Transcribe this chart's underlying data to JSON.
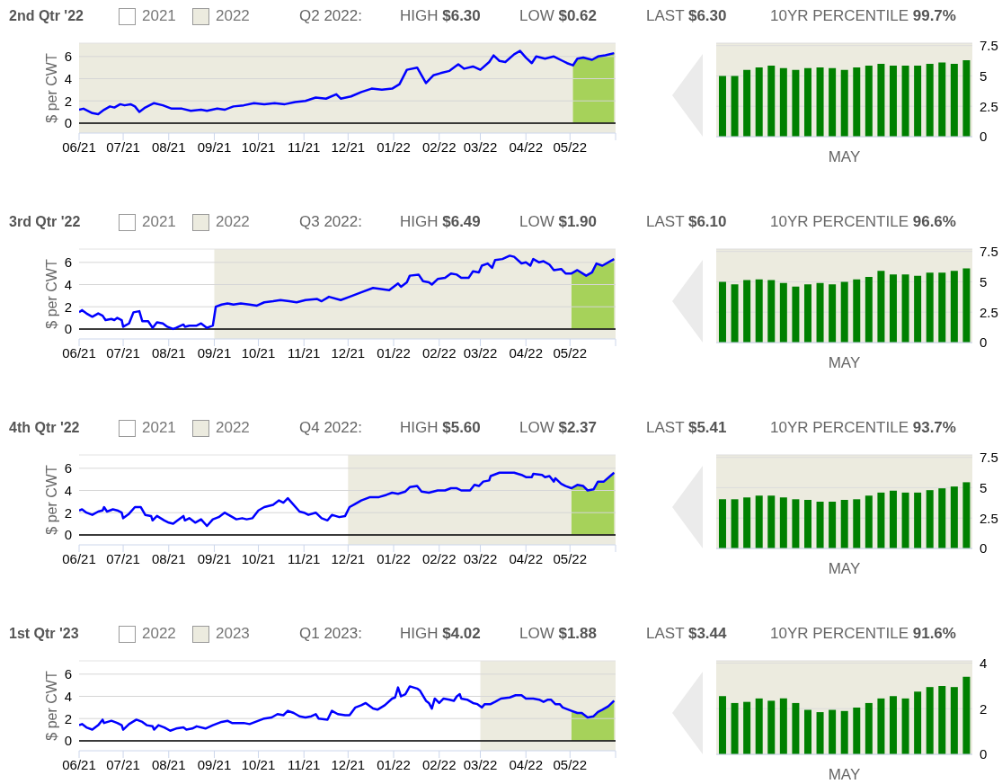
{
  "chart_data": [
    {
      "type": "line",
      "title": "2nd Qtr '22",
      "annotations": [
        "2021",
        "Q2 2022:",
        "HIGH $6.30",
        "LOW $0.62",
        "LAST $6.30",
        "10YR PERCENTILE 99.7%"
      ],
      "ylabel": "$ per CWT",
      "xlim": [
        "2021-06-01",
        "2022-06-01"
      ],
      "xticks": [
        {
          "value": "2021-06-01",
          "label": "06/21"
        },
        {
          "value": "2021-07-01",
          "label": "07/21"
        },
        {
          "value": "2021-08-01",
          "label": "08/21"
        },
        {
          "value": "2021-09-01",
          "label": "09/21"
        },
        {
          "value": "2021-10-01",
          "label": "10/21"
        },
        {
          "value": "2021-11-01",
          "label": "11/21"
        },
        {
          "value": "2021-12-01",
          "label": "12/21"
        },
        {
          "value": "2022-01-01",
          "label": "01/22"
        },
        {
          "value": "2022-02-01",
          "label": "02/22"
        },
        {
          "value": "2022-03-01",
          "label": "03/22"
        },
        {
          "value": "2022-04-01",
          "label": "04/22"
        },
        {
          "value": "2022-05-01",
          "label": "05/22"
        },
        {
          "value": "2022-06-01",
          "label": null
        }
      ],
      "ylim": [
        -0.9,
        7.2
      ],
      "yticks": [
        0,
        2,
        4,
        6
      ],
      "grid": "y",
      "bands": [
        {
          "axis": "x",
          "from": "2021-06-01",
          "to": "2022-06-01",
          "label": "2022",
          "color": "#ecebdf"
        }
      ],
      "ref_lines": [
        {
          "axis": "y",
          "value": 0,
          "color": "#000000"
        }
      ],
      "series": [
        {
          "type": "area",
          "color": "#a6d25a",
          "x": [
            "2022-05-03",
            "2022-05-06",
            "2022-05-10",
            "2022-05-16",
            "2022-05-20",
            "2022-05-25",
            "2022-05-31"
          ],
          "values": [
            5.2,
            5.8,
            5.9,
            5.7,
            6.0,
            6.1,
            6.3
          ]
        },
        {
          "color": "#0000ff",
          "x": [
            "2021-06-01",
            "2021-06-04",
            "2021-06-10",
            "2021-06-14",
            "2021-06-18",
            "2021-06-22",
            "2021-06-25",
            "2021-06-29",
            "2021-07-02",
            "2021-07-06",
            "2021-07-09",
            "2021-07-12",
            "2021-07-16",
            "2021-07-22",
            "2021-07-28",
            "2021-08-03",
            "2021-08-10",
            "2021-08-16",
            "2021-08-23",
            "2021-08-27",
            "2021-09-03",
            "2021-09-08",
            "2021-09-14",
            "2021-09-21",
            "2021-09-28",
            "2021-10-05",
            "2021-10-12",
            "2021-10-19",
            "2021-10-26",
            "2021-11-02",
            "2021-11-09",
            "2021-11-16",
            "2021-11-23",
            "2021-11-26",
            "2021-12-03",
            "2021-12-10",
            "2021-12-17",
            "2021-12-24",
            "2021-12-31",
            "2022-01-05",
            "2022-01-10",
            "2022-01-17",
            "2022-01-23",
            "2022-01-28",
            "2022-02-02",
            "2022-02-08",
            "2022-02-14",
            "2022-02-18",
            "2022-02-24",
            "2022-03-01",
            "2022-03-07",
            "2022-03-10",
            "2022-03-14",
            "2022-03-18",
            "2022-03-24",
            "2022-03-28",
            "2022-04-01",
            "2022-04-05",
            "2022-04-08",
            "2022-04-14",
            "2022-04-20",
            "2022-04-26",
            "2022-04-29",
            "2022-05-03",
            "2022-05-06",
            "2022-05-10",
            "2022-05-16",
            "2022-05-20",
            "2022-05-25",
            "2022-05-31"
          ],
          "values": [
            1.2,
            1.3,
            0.9,
            0.8,
            1.2,
            1.5,
            1.4,
            1.7,
            1.6,
            1.7,
            1.5,
            1.0,
            1.4,
            1.8,
            1.6,
            1.3,
            1.3,
            1.1,
            1.2,
            1.1,
            1.3,
            1.2,
            1.5,
            1.6,
            1.8,
            1.7,
            1.8,
            1.7,
            1.9,
            2.0,
            2.3,
            2.2,
            2.6,
            2.2,
            2.4,
            2.8,
            3.1,
            3.0,
            3.1,
            3.5,
            4.8,
            5.0,
            3.6,
            4.3,
            4.5,
            4.7,
            5.3,
            4.9,
            5.1,
            4.8,
            5.5,
            6.1,
            5.6,
            5.5,
            6.2,
            6.5,
            5.9,
            5.4,
            6.0,
            5.8,
            6.0,
            5.6,
            5.4,
            5.2,
            5.8,
            5.9,
            5.7,
            6.0,
            6.1,
            6.3
          ]
        }
      ]
    },
    {
      "type": "bar",
      "categories": [
        null,
        null,
        null,
        null,
        null,
        null,
        null,
        null,
        null,
        null,
        null,
        null,
        null,
        null,
        null,
        null,
        null,
        null,
        null,
        null,
        null
      ],
      "xlabel": "MAY",
      "values": [
        5.0,
        5.0,
        5.5,
        5.7,
        5.85,
        5.65,
        5.5,
        5.65,
        5.7,
        5.65,
        5.5,
        5.7,
        5.85,
        6.0,
        5.85,
        5.85,
        5.85,
        6.0,
        6.1,
        6.0,
        6.3
      ],
      "color": "#008000",
      "ylim": [
        0,
        7.7
      ],
      "yticks": [
        0,
        2.5,
        5,
        7.5
      ],
      "grid": "y"
    },
    {
      "type": "line",
      "title": "3rd Qtr '22",
      "annotations": [
        "2021",
        "Q3 2022:",
        "HIGH $6.49",
        "LOW $1.90",
        "LAST $6.10",
        "10YR PERCENTILE 96.6%"
      ],
      "ylabel": "$ per CWT",
      "xlim": [
        "2021-06-01",
        "2022-06-01"
      ],
      "xticks": [
        {
          "value": "2021-06-01",
          "label": "06/21"
        },
        {
          "value": "2021-07-01",
          "label": "07/21"
        },
        {
          "value": "2021-08-01",
          "label": "08/21"
        },
        {
          "value": "2021-09-01",
          "label": "09/21"
        },
        {
          "value": "2021-10-01",
          "label": "10/21"
        },
        {
          "value": "2021-11-01",
          "label": "11/21"
        },
        {
          "value": "2021-12-01",
          "label": "12/21"
        },
        {
          "value": "2022-01-01",
          "label": "01/22"
        },
        {
          "value": "2022-02-01",
          "label": "02/22"
        },
        {
          "value": "2022-03-01",
          "label": "03/22"
        },
        {
          "value": "2022-04-01",
          "label": "04/22"
        },
        {
          "value": "2022-05-01",
          "label": "05/22"
        },
        {
          "value": "2022-06-01",
          "label": null
        }
      ],
      "ylim": [
        -0.9,
        7.2
      ],
      "yticks": [
        0,
        2,
        4,
        6
      ],
      "grid": "y",
      "bands": [
        {
          "axis": "x",
          "from": "2021-09-01",
          "to": "2022-06-01",
          "label": "2022",
          "color": "#ecebdf"
        }
      ],
      "ref_lines": [
        {
          "axis": "y",
          "value": 0,
          "color": "#000000"
        }
      ],
      "series": [
        {
          "type": "area",
          "color": "#a6d25a",
          "x": [
            "2022-05-02",
            "2022-05-06",
            "2022-05-12",
            "2022-05-16",
            "2022-05-19",
            "2022-05-23",
            "2022-05-31"
          ],
          "values": [
            5.0,
            5.3,
            4.8,
            5.1,
            5.9,
            5.7,
            6.3
          ]
        },
        {
          "color": "#0000ff",
          "x": [
            "2021-06-01",
            "2021-06-03",
            "2021-06-06",
            "2021-06-10",
            "2021-06-14",
            "2021-06-17",
            "2021-06-19",
            "2021-06-23",
            "2021-06-25",
            "2021-06-27",
            "2021-06-30",
            "2021-07-01",
            "2021-07-05",
            "2021-07-08",
            "2021-07-12",
            "2021-07-14",
            "2021-07-18",
            "2021-07-21",
            "2021-07-24",
            "2021-07-28",
            "2021-07-31",
            "2021-08-04",
            "2021-08-06",
            "2021-08-11",
            "2021-08-12",
            "2021-08-15",
            "2021-08-20",
            "2021-08-23",
            "2021-08-27",
            "2021-08-31",
            "2021-09-02",
            "2021-09-06",
            "2021-09-10",
            "2021-09-14",
            "2021-09-19",
            "2021-09-25",
            "2021-09-30",
            "2021-10-05",
            "2021-10-11",
            "2021-10-16",
            "2021-10-22",
            "2021-10-27",
            "2021-11-02",
            "2021-11-10",
            "2021-11-13",
            "2021-11-18",
            "2021-11-26",
            "2021-12-02",
            "2021-12-10",
            "2021-12-18",
            "2021-12-29",
            "2022-01-04",
            "2022-01-06",
            "2022-01-10",
            "2022-01-12",
            "2022-01-18",
            "2022-01-21",
            "2022-01-25",
            "2022-01-27",
            "2022-01-31",
            "2022-02-05",
            "2022-02-09",
            "2022-02-13",
            "2022-02-16",
            "2022-02-21",
            "2022-02-24",
            "2022-02-28",
            "2022-03-02",
            "2022-03-06",
            "2022-03-09",
            "2022-03-11",
            "2022-03-16",
            "2022-03-21",
            "2022-03-24",
            "2022-03-29",
            "2022-04-01",
            "2022-04-04",
            "2022-04-06",
            "2022-04-10",
            "2022-04-13",
            "2022-04-17",
            "2022-04-20",
            "2022-04-25",
            "2022-04-28",
            "2022-05-02",
            "2022-05-06",
            "2022-05-12",
            "2022-05-16",
            "2022-05-19",
            "2022-05-23",
            "2022-05-31"
          ],
          "values": [
            1.5,
            1.7,
            1.4,
            1.1,
            1.4,
            1.2,
            0.8,
            0.9,
            0.8,
            1.0,
            0.8,
            0.2,
            0.5,
            1.5,
            1.6,
            0.7,
            0.7,
            0.1,
            0.6,
            0.5,
            0.2,
            0.0,
            0.1,
            0.4,
            0.2,
            0.3,
            0.3,
            0.5,
            0.1,
            0.3,
            2.0,
            2.2,
            2.3,
            2.2,
            2.3,
            2.2,
            2.1,
            2.4,
            2.5,
            2.6,
            2.5,
            2.4,
            2.6,
            2.7,
            2.5,
            2.9,
            2.6,
            2.9,
            3.3,
            3.7,
            3.5,
            4.1,
            3.8,
            4.2,
            4.8,
            4.9,
            4.3,
            4.2,
            4.0,
            4.5,
            4.6,
            5.0,
            4.9,
            4.6,
            4.6,
            5.2,
            5.1,
            5.7,
            5.9,
            5.5,
            6.2,
            6.3,
            6.6,
            6.5,
            5.9,
            6.0,
            5.7,
            6.3,
            6.0,
            6.1,
            5.8,
            5.3,
            5.4,
            5.0,
            5.0,
            5.3,
            4.8,
            5.1,
            5.9,
            5.7,
            6.3
          ]
        }
      ]
    },
    {
      "type": "bar",
      "categories": [
        null,
        null,
        null,
        null,
        null,
        null,
        null,
        null,
        null,
        null,
        null,
        null,
        null,
        null,
        null,
        null,
        null,
        null,
        null,
        null,
        null
      ],
      "xlabel": "MAY",
      "values": [
        5.0,
        4.8,
        5.15,
        5.2,
        5.15,
        4.9,
        4.6,
        4.8,
        4.9,
        4.8,
        5.0,
        5.2,
        5.4,
        5.9,
        5.6,
        5.6,
        5.5,
        5.75,
        5.75,
        5.9,
        6.1
      ],
      "color": "#008000",
      "ylim": [
        0,
        7.7
      ],
      "yticks": [
        0,
        2.5,
        5,
        7.5
      ],
      "grid": "y"
    },
    {
      "type": "line",
      "title": "4th Qtr '22",
      "annotations": [
        "2021",
        "Q4 2022:",
        "HIGH $5.60",
        "LOW $2.37",
        "LAST $5.41",
        "10YR PERCENTILE 93.7%"
      ],
      "ylabel": "$ per CWT",
      "xlim": [
        "2021-06-01",
        "2022-06-01"
      ],
      "xticks": [
        {
          "value": "2021-06-01",
          "label": "06/21"
        },
        {
          "value": "2021-07-01",
          "label": "07/21"
        },
        {
          "value": "2021-08-01",
          "label": "08/21"
        },
        {
          "value": "2021-09-01",
          "label": "09/21"
        },
        {
          "value": "2021-10-01",
          "label": "10/21"
        },
        {
          "value": "2021-11-01",
          "label": "11/21"
        },
        {
          "value": "2021-12-01",
          "label": "12/21"
        },
        {
          "value": "2022-01-01",
          "label": "01/22"
        },
        {
          "value": "2022-02-01",
          "label": "02/22"
        },
        {
          "value": "2022-03-01",
          "label": "03/22"
        },
        {
          "value": "2022-04-01",
          "label": "04/22"
        },
        {
          "value": "2022-05-01",
          "label": "05/22"
        },
        {
          "value": "2022-06-01",
          "label": null
        }
      ],
      "ylim": [
        -0.9,
        7.2
      ],
      "yticks": [
        0,
        2,
        4,
        6
      ],
      "grid": "y",
      "bands": [
        {
          "axis": "x",
          "from": "2021-12-01",
          "to": "2022-06-01",
          "label": "2022",
          "color": "#ecebdf"
        }
      ],
      "ref_lines": [
        {
          "axis": "y",
          "value": 0,
          "color": "#000000"
        }
      ],
      "series": [
        {
          "type": "area",
          "color": "#a6d25a",
          "x": [
            "2022-05-02",
            "2022-05-06",
            "2022-05-10",
            "2022-05-13",
            "2022-05-17",
            "2022-05-20",
            "2022-05-24",
            "2022-05-31"
          ],
          "values": [
            4.2,
            4.5,
            4.4,
            4.0,
            4.1,
            4.8,
            4.8,
            5.6
          ]
        },
        {
          "color": "#0000ff",
          "x": [
            "2021-06-01",
            "2021-06-03",
            "2021-06-06",
            "2021-06-10",
            "2021-06-14",
            "2021-06-17",
            "2021-06-18",
            "2021-06-20",
            "2021-06-24",
            "2021-06-27",
            "2021-06-30",
            "2021-07-01",
            "2021-07-05",
            "2021-07-09",
            "2021-07-13",
            "2021-07-16",
            "2021-07-20",
            "2021-07-21",
            "2021-07-24",
            "2021-07-29",
            "2021-08-01",
            "2021-08-04",
            "2021-08-06",
            "2021-08-11",
            "2021-08-12",
            "2021-08-15",
            "2021-08-19",
            "2021-08-23",
            "2021-08-27",
            "2021-08-31",
            "2021-09-04",
            "2021-09-08",
            "2021-09-12",
            "2021-09-16",
            "2021-09-20",
            "2021-09-23",
            "2021-09-27",
            "2021-10-01",
            "2021-10-05",
            "2021-10-11",
            "2021-10-15",
            "2021-10-18",
            "2021-10-21",
            "2021-10-23",
            "2021-10-29",
            "2021-11-01",
            "2021-11-04",
            "2021-11-09",
            "2021-11-13",
            "2021-11-17",
            "2021-11-20",
            "2021-11-25",
            "2021-11-29",
            "2021-12-02",
            "2021-12-06",
            "2021-12-10",
            "2021-12-16",
            "2021-12-22",
            "2021-12-27",
            "2021-12-31",
            "2022-01-04",
            "2022-01-09",
            "2022-01-12",
            "2022-01-17",
            "2022-01-20",
            "2022-01-25",
            "2022-01-31",
            "2022-02-05",
            "2022-02-09",
            "2022-02-13",
            "2022-02-16",
            "2022-02-22",
            "2022-02-25",
            "2022-02-28",
            "2022-03-03",
            "2022-03-07",
            "2022-03-08",
            "2022-03-14",
            "2022-03-21",
            "2022-03-24",
            "2022-03-29",
            "2022-04-01",
            "2022-04-05",
            "2022-04-06",
            "2022-04-12",
            "2022-04-14",
            "2022-04-17",
            "2022-04-20",
            "2022-04-21",
            "2022-04-25",
            "2022-04-28",
            "2022-05-02",
            "2022-05-06",
            "2022-05-10",
            "2022-05-13",
            "2022-05-17",
            "2022-05-20",
            "2022-05-24",
            "2022-05-31"
          ],
          "values": [
            2.2,
            2.3,
            2.0,
            1.8,
            2.1,
            2.2,
            2.5,
            2.1,
            2.3,
            2.2,
            2.0,
            1.5,
            1.9,
            2.5,
            2.5,
            1.8,
            1.7,
            1.3,
            1.7,
            1.3,
            1.1,
            1.0,
            1.2,
            1.7,
            1.3,
            1.5,
            1.1,
            1.4,
            0.8,
            1.4,
            1.6,
            2.0,
            1.7,
            1.4,
            1.5,
            1.4,
            1.5,
            2.2,
            2.5,
            2.7,
            3.1,
            2.9,
            3.3,
            3.0,
            2.1,
            2.0,
            1.8,
            2.0,
            1.5,
            1.3,
            1.8,
            1.6,
            1.7,
            2.5,
            2.8,
            3.1,
            3.4,
            3.4,
            3.6,
            3.8,
            3.7,
            3.9,
            4.3,
            4.4,
            3.9,
            3.8,
            4.0,
            4.0,
            4.2,
            4.2,
            4.0,
            4.0,
            4.5,
            4.4,
            4.8,
            4.9,
            5.3,
            5.6,
            5.6,
            5.6,
            5.4,
            5.2,
            5.2,
            5.5,
            5.4,
            5.2,
            5.3,
            4.8,
            5.1,
            4.6,
            4.4,
            4.2,
            4.5,
            4.4,
            4.0,
            4.1,
            4.8,
            4.8,
            5.6
          ]
        }
      ]
    },
    {
      "type": "bar",
      "categories": [
        null,
        null,
        null,
        null,
        null,
        null,
        null,
        null,
        null,
        null,
        null,
        null,
        null,
        null,
        null,
        null,
        null,
        null,
        null,
        null,
        null
      ],
      "xlabel": "MAY",
      "values": [
        4.05,
        4.05,
        4.2,
        4.35,
        4.35,
        4.2,
        4.05,
        4.0,
        3.85,
        3.85,
        4.0,
        4.05,
        4.35,
        4.6,
        4.75,
        4.6,
        4.6,
        4.8,
        4.95,
        5.1,
        5.45
      ],
      "color": "#008000",
      "ylim": [
        0,
        7.7
      ],
      "yticks": [
        0,
        2.5,
        5,
        7.5
      ],
      "grid": "y"
    },
    {
      "type": "line",
      "title": "1st Qtr '23",
      "annotations": [
        "2022",
        "Q1 2023:",
        "HIGH $4.02",
        "LOW $1.88",
        "LAST $3.44",
        "10YR PERCENTILE 91.6%"
      ],
      "ylabel": "$ per CWT",
      "xlim": [
        "2021-06-01",
        "2022-06-01"
      ],
      "xticks": [
        {
          "value": "2021-06-01",
          "label": "06/21"
        },
        {
          "value": "2021-07-01",
          "label": "07/21"
        },
        {
          "value": "2021-08-01",
          "label": "08/21"
        },
        {
          "value": "2021-09-01",
          "label": "09/21"
        },
        {
          "value": "2021-10-01",
          "label": "10/21"
        },
        {
          "value": "2021-11-01",
          "label": "11/21"
        },
        {
          "value": "2021-12-01",
          "label": "12/21"
        },
        {
          "value": "2022-01-01",
          "label": "01/22"
        },
        {
          "value": "2022-02-01",
          "label": "02/22"
        },
        {
          "value": "2022-03-01",
          "label": "03/22"
        },
        {
          "value": "2022-04-01",
          "label": "04/22"
        },
        {
          "value": "2022-05-01",
          "label": "05/22"
        },
        {
          "value": "2022-06-01",
          "label": null
        }
      ],
      "ylim": [
        -0.9,
        7.2
      ],
      "yticks": [
        0,
        2,
        4,
        6
      ],
      "grid": "y",
      "bands": [
        {
          "axis": "x",
          "from": "2022-03-01",
          "to": "2022-06-01",
          "label": "2023",
          "color": "#ecebdf"
        }
      ],
      "ref_lines": [
        {
          "axis": "y",
          "value": 0,
          "color": "#000000"
        }
      ],
      "series": [
        {
          "type": "area",
          "color": "#a6d25a",
          "x": [
            "2022-05-02",
            "2022-05-06",
            "2022-05-09",
            "2022-05-13",
            "2022-05-17",
            "2022-05-20",
            "2022-05-23",
            "2022-05-27",
            "2022-05-31"
          ],
          "values": [
            2.7,
            2.5,
            2.5,
            2.1,
            2.2,
            2.6,
            2.8,
            3.1,
            3.6
          ]
        },
        {
          "color": "#0000ff",
          "x": [
            "2021-06-01",
            "2021-06-03",
            "2021-06-06",
            "2021-06-10",
            "2021-06-14",
            "2021-06-17",
            "2021-06-18",
            "2021-06-23",
            "2021-06-27",
            "2021-06-30",
            "2021-07-01",
            "2021-07-05",
            "2021-07-10",
            "2021-07-14",
            "2021-07-17",
            "2021-07-21",
            "2021-07-22",
            "2021-07-25",
            "2021-07-29",
            "2021-08-02",
            "2021-08-06",
            "2021-08-11",
            "2021-08-13",
            "2021-08-17",
            "2021-08-20",
            "2021-08-26",
            "2021-08-31",
            "2021-09-06",
            "2021-09-10",
            "2021-09-13",
            "2021-09-17",
            "2021-09-21",
            "2021-09-25",
            "2021-09-27",
            "2021-10-01",
            "2021-10-05",
            "2021-10-10",
            "2021-10-14",
            "2021-10-18",
            "2021-10-21",
            "2021-10-25",
            "2021-10-29",
            "2021-11-02",
            "2021-11-06",
            "2021-11-09",
            "2021-11-11",
            "2021-11-17",
            "2021-11-20",
            "2021-11-24",
            "2021-11-29",
            "2021-12-02",
            "2021-12-06",
            "2021-12-10",
            "2021-12-13",
            "2021-12-18",
            "2021-12-21",
            "2021-12-26",
            "2021-12-31",
            "2022-01-02",
            "2022-01-04",
            "2022-01-06",
            "2022-01-09",
            "2022-01-12",
            "2022-01-17",
            "2022-01-19",
            "2022-01-23",
            "2022-01-25",
            "2022-01-27",
            "2022-01-29",
            "2022-02-01",
            "2022-02-04",
            "2022-02-08",
            "2022-02-11",
            "2022-02-13",
            "2022-02-15",
            "2022-02-16",
            "2022-02-20",
            "2022-02-24",
            "2022-02-27",
            "2022-03-02",
            "2022-03-04",
            "2022-03-08",
            "2022-03-11",
            "2022-03-15",
            "2022-03-21",
            "2022-03-25",
            "2022-03-29",
            "2022-04-01",
            "2022-04-06",
            "2022-04-10",
            "2022-04-13",
            "2022-04-16",
            "2022-04-18",
            "2022-04-21",
            "2022-04-24",
            "2022-04-26",
            "2022-05-02",
            "2022-05-06",
            "2022-05-09",
            "2022-05-13",
            "2022-05-17",
            "2022-05-20",
            "2022-05-23",
            "2022-05-27",
            "2022-05-31"
          ],
          "values": [
            1.4,
            1.5,
            1.2,
            1.0,
            1.4,
            1.9,
            1.6,
            1.8,
            1.6,
            1.4,
            1.0,
            1.5,
            1.9,
            1.7,
            1.4,
            1.3,
            1.0,
            1.4,
            1.2,
            0.9,
            1.1,
            1.2,
            1.0,
            1.1,
            1.3,
            1.1,
            1.4,
            1.7,
            1.8,
            1.6,
            1.6,
            1.6,
            1.5,
            1.6,
            1.8,
            2.0,
            2.1,
            2.4,
            2.3,
            2.7,
            2.5,
            2.2,
            2.1,
            2.2,
            2.4,
            2.0,
            1.9,
            2.7,
            2.4,
            2.3,
            2.3,
            3.0,
            3.2,
            3.4,
            2.9,
            2.8,
            3.2,
            3.8,
            3.9,
            4.8,
            4.0,
            4.2,
            4.9,
            4.7,
            4.5,
            3.6,
            3.4,
            2.9,
            3.8,
            3.4,
            3.8,
            3.7,
            3.6,
            4.0,
            4.2,
            3.8,
            3.7,
            3.4,
            3.3,
            3.0,
            3.3,
            3.3,
            3.5,
            3.8,
            3.9,
            4.1,
            4.1,
            3.8,
            3.8,
            3.7,
            3.5,
            3.7,
            3.7,
            3.3,
            3.3,
            3.0,
            2.7,
            2.5,
            2.5,
            2.1,
            2.2,
            2.6,
            2.8,
            3.1,
            3.6
          ]
        }
      ]
    },
    {
      "type": "bar",
      "categories": [
        null,
        null,
        null,
        null,
        null,
        null,
        null,
        null,
        null,
        null,
        null,
        null,
        null,
        null,
        null,
        null,
        null,
        null,
        null,
        null,
        null
      ],
      "xlabel": "MAY",
      "values": [
        2.55,
        2.25,
        2.3,
        2.45,
        2.35,
        2.45,
        2.25,
        1.95,
        1.85,
        1.95,
        1.9,
        2.05,
        2.25,
        2.45,
        2.55,
        2.45,
        2.75,
        2.95,
        3.0,
        2.95,
        3.4
      ],
      "color": "#008000",
      "ylim": [
        0,
        4.1
      ],
      "yticks": [
        0,
        2,
        4
      ],
      "grid": "y"
    }
  ]
}
